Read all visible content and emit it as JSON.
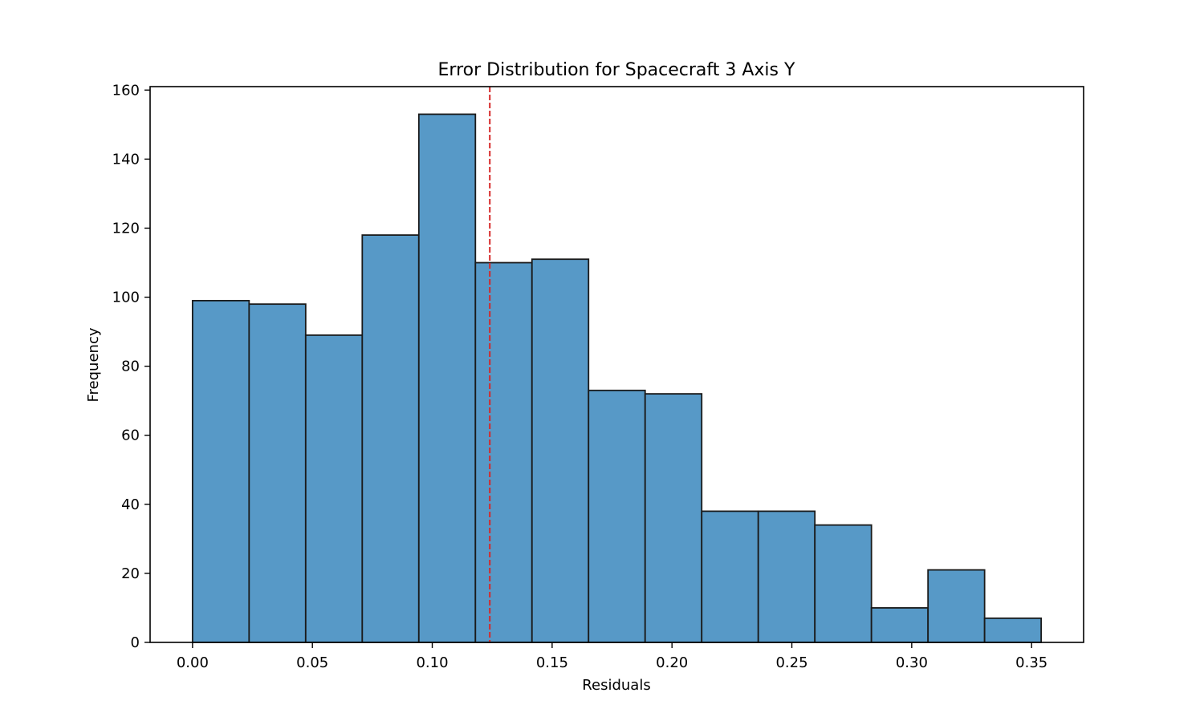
{
  "chart_data": {
    "type": "bar",
    "subtype": "histogram",
    "title": "Error Distribution for Spacecraft 3 Axis Y",
    "xlabel": "Residuals",
    "ylabel": "Frequency",
    "xlim": [
      -0.0177,
      0.3717
    ],
    "ylim": [
      0,
      161
    ],
    "bin_edges": [
      0.0,
      0.0236,
      0.0472,
      0.0708,
      0.0944,
      0.118,
      0.1416,
      0.1652,
      0.1888,
      0.2124,
      0.236,
      0.2596,
      0.2832,
      0.3068,
      0.3304,
      0.354
    ],
    "values": [
      99,
      98,
      89,
      118,
      153,
      110,
      111,
      73,
      72,
      38,
      38,
      34,
      10,
      21,
      7
    ],
    "mean_line": {
      "x": 0.124,
      "color": "#d62728",
      "style": "dashed"
    },
    "x_ticks": [
      {
        "value": 0.0,
        "label": "0.00"
      },
      {
        "value": 0.05,
        "label": "0.05"
      },
      {
        "value": 0.1,
        "label": "0.10"
      },
      {
        "value": 0.15,
        "label": "0.15"
      },
      {
        "value": 0.2,
        "label": "0.20"
      },
      {
        "value": 0.25,
        "label": "0.25"
      },
      {
        "value": 0.3,
        "label": "0.30"
      },
      {
        "value": 0.35,
        "label": "0.35"
      }
    ],
    "y_ticks": [
      {
        "value": 0,
        "label": "0"
      },
      {
        "value": 20,
        "label": "20"
      },
      {
        "value": 40,
        "label": "40"
      },
      {
        "value": 60,
        "label": "60"
      },
      {
        "value": 80,
        "label": "80"
      },
      {
        "value": 100,
        "label": "100"
      },
      {
        "value": 120,
        "label": "120"
      },
      {
        "value": 140,
        "label": "140"
      },
      {
        "value": 160,
        "label": "160"
      }
    ],
    "grid": false,
    "colors": {
      "bar_fill": "#5799c7",
      "bar_edge": "#1a1a1a",
      "axes": "#000000"
    }
  }
}
